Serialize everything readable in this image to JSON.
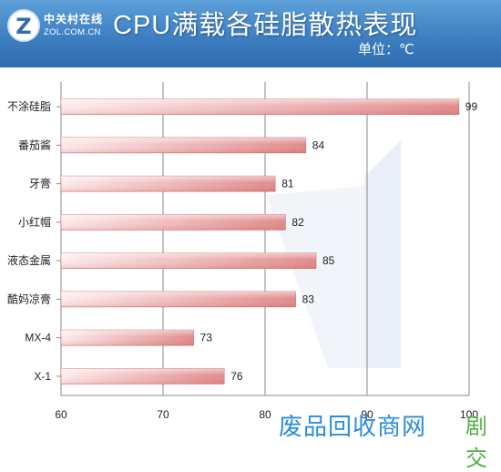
{
  "header": {
    "logo_cn": "中关村在线",
    "logo_en": "ZOL.COM.CN",
    "logo_icon": "zol-logo-icon"
  },
  "chart_data": {
    "type": "bar",
    "orientation": "horizontal",
    "title": "CPU满载各硅脂散热表现",
    "unit_label": "单位：℃",
    "categories": [
      "不涂硅脂",
      "番茄酱",
      "牙膏",
      "小红帽",
      "液态金属",
      "酷妈凉膏",
      "MX-4",
      "X-1"
    ],
    "values": [
      99,
      84,
      81,
      82,
      85,
      83,
      73,
      76
    ],
    "xlim": [
      60,
      100
    ],
    "x_ticks": [
      60,
      70,
      80,
      90,
      100
    ],
    "grid": true,
    "legend": "none",
    "bar_color": "#e08585",
    "bar_color_light": "#fdeaea"
  },
  "watermark": {
    "text": "废品回收商网",
    "mark": "剧交"
  }
}
